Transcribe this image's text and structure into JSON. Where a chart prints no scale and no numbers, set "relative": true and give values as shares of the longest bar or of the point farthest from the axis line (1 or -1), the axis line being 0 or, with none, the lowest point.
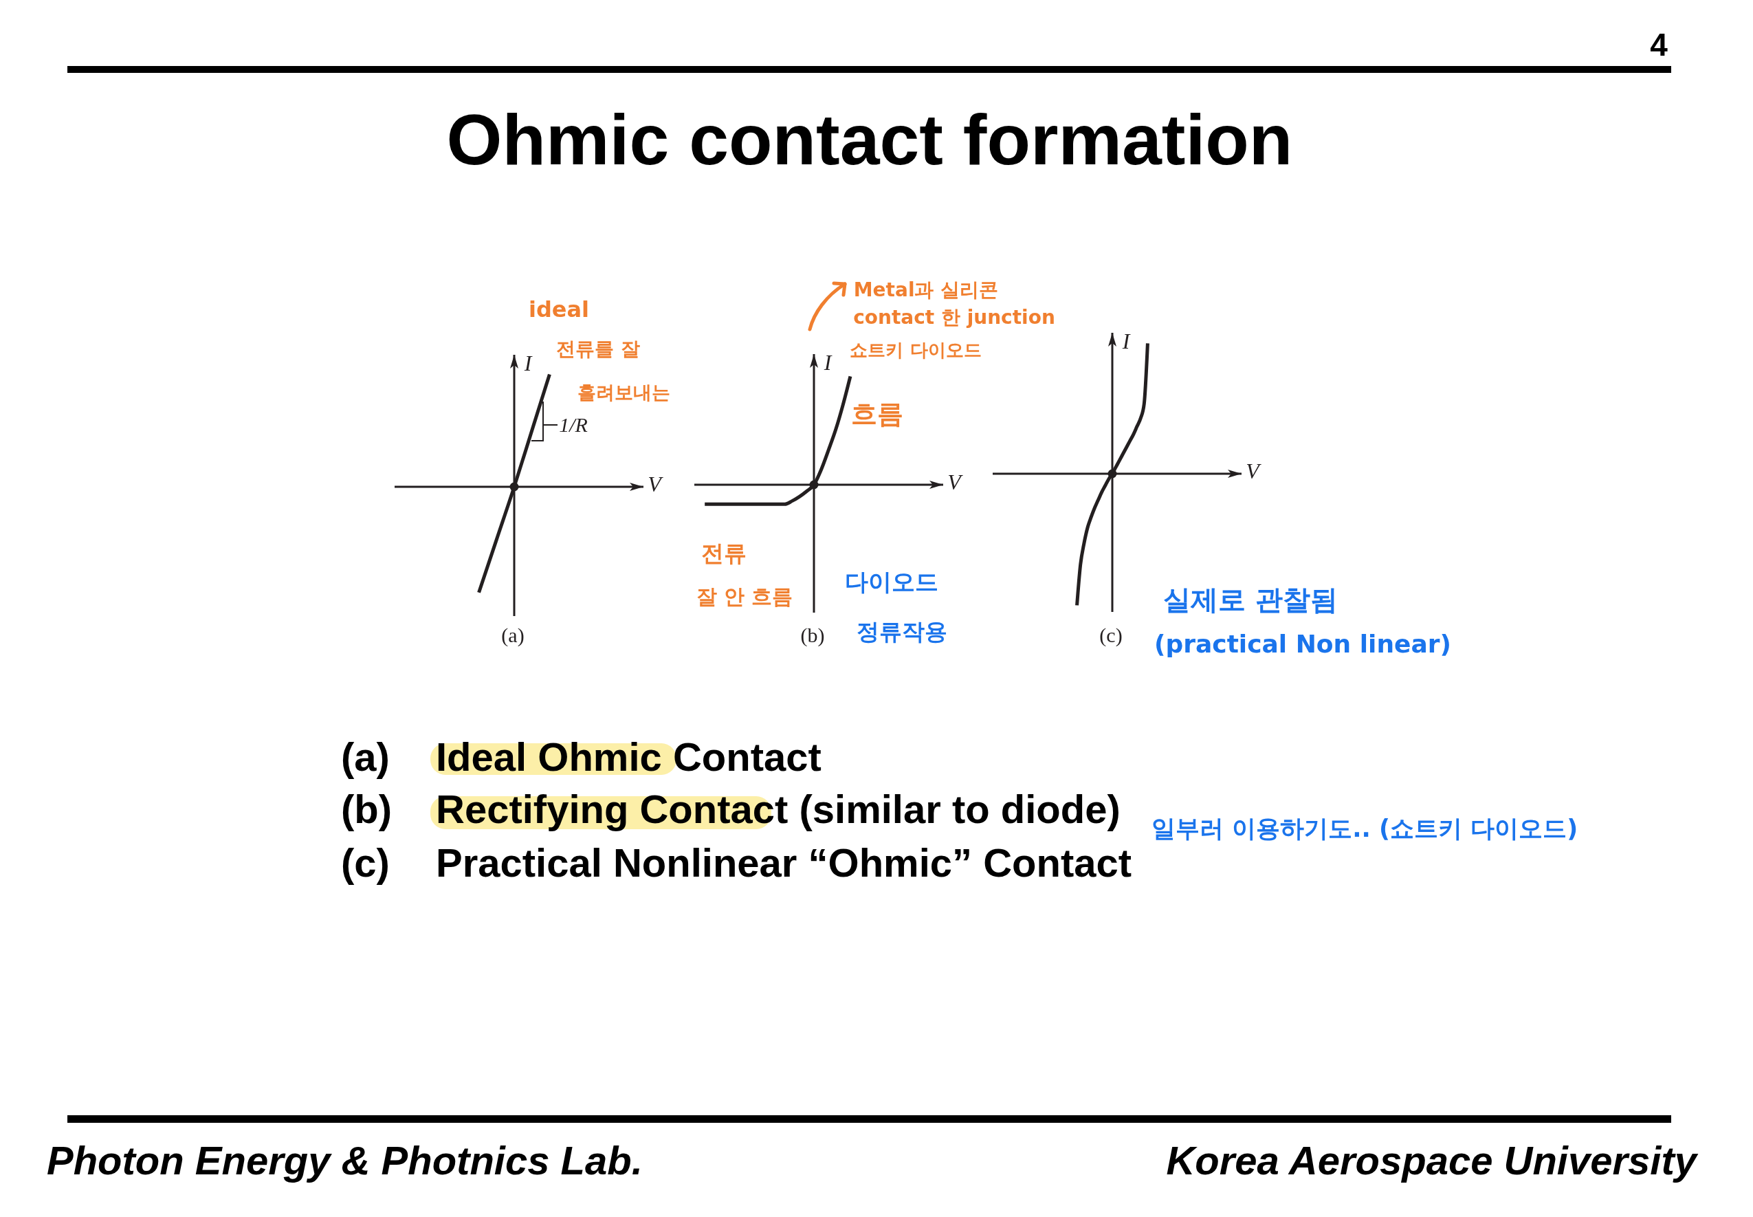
{
  "chart_data": [
    {
      "type": "other",
      "title": "Ohmic contact formation",
      "annotations": [
        "4"
      ]
    },
    {
      "type": "line",
      "title": "(a)",
      "xlabel": "V",
      "ylabel": "I",
      "relative": true,
      "categories": [
        null,
        null,
        null,
        null,
        null,
        null,
        null,
        null,
        null,
        null,
        null,
        null,
        null,
        null,
        null
      ],
      "series": [
        {
          "color": "#231f20",
          "values": [
            null,
            null,
            null,
            null,
            null,
            -0.94,
            -0.47,
            0,
            0.5,
            1,
            null,
            null,
            null,
            null,
            null
          ]
        }
      ],
      "annotations": [
        "ideal",
        "전류를 잘",
        "흘려보내는",
        "1/R"
      ]
    },
    {
      "type": "line",
      "title": "(b)",
      "xlabel": "V",
      "ylabel": "I",
      "relative": true,
      "categories": [
        null,
        null,
        null,
        null,
        null,
        null,
        null,
        null,
        null,
        null,
        null,
        null,
        null,
        null,
        null,
        null,
        null,
        null,
        null,
        null,
        null,
        null,
        null,
        null,
        null,
        null,
        null,
        null,
        null,
        null,
        null,
        null,
        null,
        null,
        null
      ],
      "series": [
        {
          "color": "#231f20",
          "values": [
            null,
            null,
            -0.18,
            -0.18,
            -0.18,
            -0.18,
            -0.18,
            -0.18,
            -0.18,
            -0.18,
            -0.18,
            -0.18,
            -0.18,
            -0.18,
            -0.15,
            -0.11,
            -0.06,
            0,
            0.14,
            0.32,
            0.51,
            0.74,
            1,
            null,
            null,
            null,
            null,
            null,
            null,
            null,
            null,
            null,
            null,
            null,
            null
          ]
        }
      ],
      "annotations": [
        "Metal과 실리콘",
        "contact 한 junction",
        "쇼트키 다이오드",
        "흐름",
        "전류",
        "잘 안 흐름",
        "다이오드",
        "정류작용"
      ]
    },
    {
      "type": "line",
      "title": "(c)",
      "xlabel": "V",
      "ylabel": "I",
      "relative": true,
      "categories": [
        null,
        null,
        null,
        null,
        null,
        null,
        null,
        null,
        null,
        null,
        null,
        null,
        null,
        null,
        null,
        null,
        null,
        null,
        null,
        null,
        null,
        null,
        null,
        null,
        null,
        null,
        null,
        null,
        null,
        null,
        null,
        null,
        null,
        null,
        null,
        null,
        null,
        null,
        null,
        null,
        null,
        null,
        null,
        null,
        null,
        null,
        null,
        null,
        null,
        null,
        null,
        null,
        null,
        null,
        null,
        null,
        null,
        null,
        null,
        null,
        null,
        null,
        null,
        null,
        null,
        null,
        null,
        null,
        null,
        null,
        null
      ],
      "series": [
        {
          "color": "#231f20",
          "values": [
            null,
            null,
            null,
            null,
            null,
            null,
            null,
            null,
            null,
            null,
            null,
            null,
            null,
            null,
            null,
            null,
            null,
            null,
            null,
            null,
            null,
            null,
            null,
            null,
            null,
            -1,
            -0.69,
            -0.53,
            -0.41,
            -0.33,
            -0.26,
            -0.2,
            -0.14,
            -0.09,
            -0.04,
            0,
            0.05,
            0.1,
            0.15,
            0.2,
            0.25,
            0.3,
            0.36,
            0.42,
            0.53,
            0.99,
            null,
            null,
            null,
            null,
            null,
            null,
            null,
            null,
            null,
            null,
            null,
            null,
            null,
            null,
            null,
            null,
            null,
            null,
            null,
            null,
            null,
            null,
            null,
            null,
            null
          ]
        }
      ],
      "annotations": [
        "실제로 관찰됨",
        "(practical Non linear)"
      ]
    },
    {
      "type": "other",
      "annotations": [
        "(a)",
        "Ideal Ohmic Contact",
        "(b)",
        "Rectifying Contact (similar to diode)",
        "일부러 이용하기도.. (쇼트키 다이오드)",
        "(c)",
        "Practical Nonlinear “Ohmic” Contact",
        "Photon Energy & Photnics Lab.",
        "Korea Aerospace University"
      ]
    }
  ]
}
